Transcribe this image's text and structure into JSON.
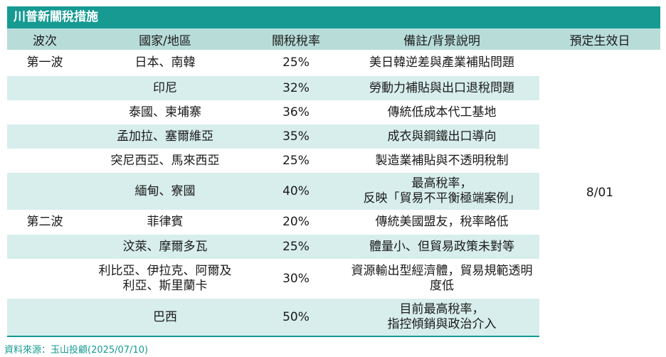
{
  "title": "川普新關稅措施",
  "headers": [
    "波次",
    "國家/地區",
    "關稅稅率",
    "備註/背景說明",
    "預定生效日"
  ],
  "effective_date": "8/01",
  "rows": [
    {
      "wave": "第一波",
      "country": "日本、南韓",
      "rate": "25%",
      "note": "美日韓逆差與產業補貼問題"
    },
    {
      "wave": "",
      "country": "印尼",
      "rate": "32%",
      "note": "勞動力補貼與出口退稅問題"
    },
    {
      "wave": "",
      "country": "泰國、柬埔寨",
      "rate": "36%",
      "note": "傳統低成本代工基地"
    },
    {
      "wave": "",
      "country": "孟加拉、塞爾維亞",
      "rate": "35%",
      "note": "成衣與鋼鐵出口導向"
    },
    {
      "wave": "",
      "country": "突尼西亞、馬來西亞",
      "rate": "25%",
      "note": "製造業補貼與不透明稅制"
    },
    {
      "wave": "",
      "country": "緬甸、寮國",
      "rate": "40%",
      "note_line1": "最高稅率，",
      "note_line2": "反映「貿易不平衡極端案例」"
    },
    {
      "wave": "第二波",
      "country": "菲律賓",
      "rate": "20%",
      "note": "傳統美國盟友，稅率略低"
    },
    {
      "wave": "",
      "country": "汶萊、摩爾多瓦",
      "rate": "25%",
      "note": "體量小、但貿易政策未對等"
    },
    {
      "wave": "",
      "country_line1": "利比亞、伊拉克、阿爾及",
      "country_line2": "利亞、斯里蘭卡",
      "rate": "30%",
      "note_line1": "資源輸出型經濟體，貿易規範透明",
      "note_line2": "度低"
    },
    {
      "wave": "",
      "country": "巴西",
      "rate": "50%",
      "note_line1": "目前最高稅率，",
      "note_line2": "指控傾銷與政治介入"
    }
  ],
  "source": "資料來源：玉山投顧(2025/07/10)"
}
